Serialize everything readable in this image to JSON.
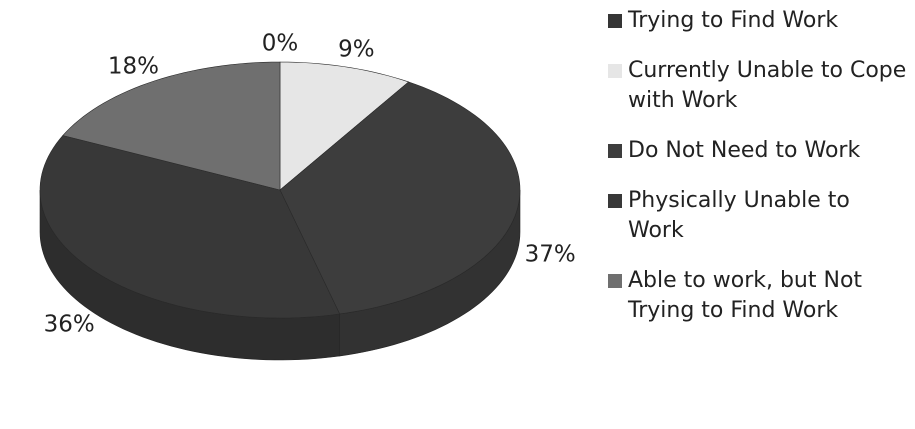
{
  "chart_data": {
    "type": "pie",
    "categories": [
      "Trying to Find Work",
      "Currently Unable to Cope with Work",
      "Do Not Need to Work",
      "Physically Unable to Work",
      "Able to work, but Not Trying to Find Work"
    ],
    "values": [
      0,
      9,
      37,
      36,
      18
    ],
    "value_labels": [
      "0%",
      "9%",
      "37%",
      "36%",
      "18%"
    ],
    "colors": [
      "#353535",
      "#e6e6e6",
      "#3d3d3d",
      "#383838",
      "#6f6f6f"
    ],
    "legend": "right"
  }
}
